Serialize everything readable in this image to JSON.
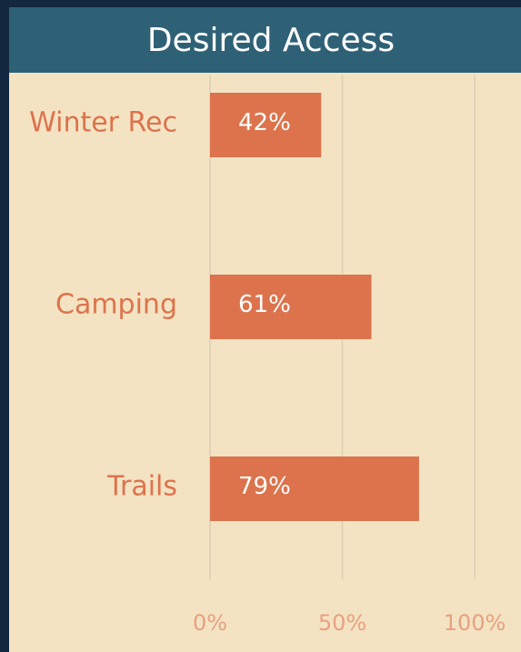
{
  "chart_data": {
    "type": "bar",
    "orientation": "horizontal",
    "title": "Desired Access",
    "categories": [
      "Winter Rec",
      "Camping",
      "Trails"
    ],
    "values": [
      42,
      61,
      79
    ],
    "value_labels": [
      "42%",
      "61%",
      "79%"
    ],
    "color": "#dc734c",
    "xlim": [
      0,
      100
    ],
    "xticks": [
      {
        "value": 0,
        "label": "0%"
      },
      {
        "value": 50,
        "label": "50%"
      },
      {
        "value": 100,
        "label": "100%"
      }
    ],
    "grid": true
  }
}
